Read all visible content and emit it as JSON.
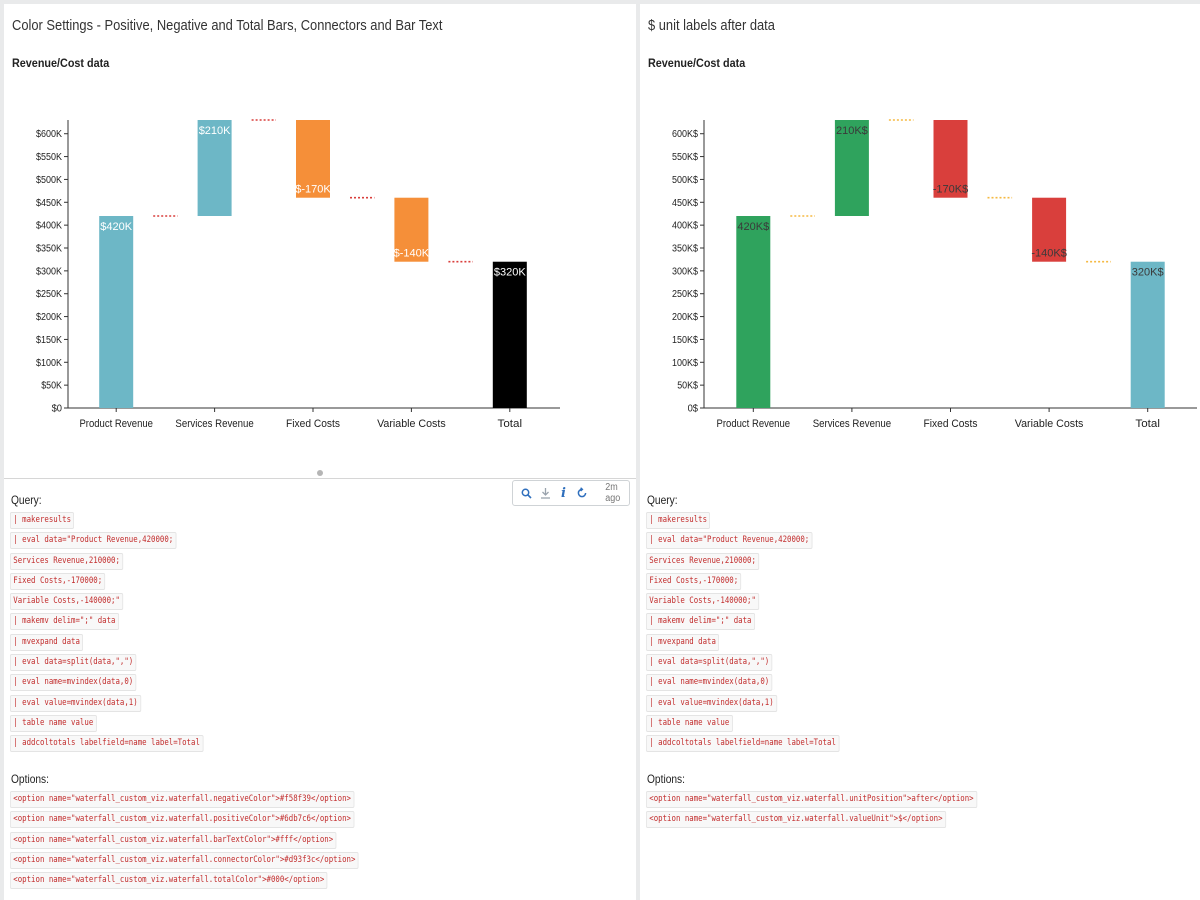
{
  "panels": [
    {
      "title": "Color Settings - Positive, Negative and Total Bars, Connectors and Bar Text",
      "chart_title": "Revenue/Cost data",
      "query_label": "Query:",
      "options_label": "Options:",
      "query_lines": [
        "| makeresults",
        "| eval data=\"Product Revenue,420000;",
        "Services Revenue,210000;",
        "Fixed Costs,-170000;",
        "Variable Costs,-140000;\"",
        "| makemv delim=\";\" data",
        "| mvexpand data",
        "| eval data=split(data,\",\")",
        "| eval name=mvindex(data,0)",
        "| eval value=mvindex(data,1)",
        "| table name value",
        "| addcoltotals labelfield=name label=Total"
      ],
      "option_lines": [
        "<option name=\"waterfall_custom_viz.waterfall.negativeColor\">#f58f39</option>",
        "<option name=\"waterfall_custom_viz.waterfall.positiveColor\">#6db7c6</option>",
        "<option name=\"waterfall_custom_viz.waterfall.barTextColor\">#fff</option>",
        "<option name=\"waterfall_custom_viz.waterfall.connectorColor\">#d93f3c</option>",
        "<option name=\"waterfall_custom_viz.waterfall.totalColor\">#000</option>"
      ],
      "toolbar": {
        "time": "2m ago",
        "info_label": "i"
      }
    },
    {
      "title": "$ unit labels after data",
      "chart_title": "Revenue/Cost data",
      "query_label": "Query:",
      "options_label": "Options:",
      "query_lines": [
        "| makeresults",
        "| eval data=\"Product Revenue,420000;",
        "Services Revenue,210000;",
        "Fixed Costs,-170000;",
        "Variable Costs,-140000;\"",
        "| makemv delim=\";\" data",
        "| mvexpand data",
        "| eval data=split(data,\",\")",
        "| eval name=mvindex(data,0)",
        "| eval value=mvindex(data,1)",
        "| table name value",
        "| addcoltotals labelfield=name label=Total"
      ],
      "option_lines": [
        "<option name=\"waterfall_custom_viz.waterfall.unitPosition\">after</option>",
        "<option name=\"waterfall_custom_viz.waterfall.valueUnit\">$</option>"
      ]
    }
  ],
  "chart_data": [
    {
      "type": "bar",
      "title": "Revenue/Cost data",
      "categories": [
        "Product Revenue",
        "Services Revenue",
        "Fixed Costs",
        "Variable Costs",
        "Total"
      ],
      "values": [
        420000,
        210000,
        -170000,
        -140000,
        320000
      ],
      "bar_labels": [
        "$420K",
        "$210K",
        "$-170K",
        "$-140K",
        "$320K"
      ],
      "y_ticks": [
        "$0",
        "$50K",
        "$100K",
        "$150K",
        "$200K",
        "$250K",
        "$300K",
        "$350K",
        "$400K",
        "$450K",
        "$500K",
        "$550K",
        "$600K"
      ],
      "ylim": [
        0,
        630000
      ],
      "colors": {
        "positive": "#6db7c6",
        "negative": "#f58f39",
        "total": "#000000",
        "connector": "#d93f3c",
        "bar_text": "#ffffff"
      }
    },
    {
      "type": "bar",
      "title": "Revenue/Cost data",
      "categories": [
        "Product Revenue",
        "Services Revenue",
        "Fixed Costs",
        "Variable Costs",
        "Total"
      ],
      "values": [
        420000,
        210000,
        -170000,
        -140000,
        320000
      ],
      "bar_labels": [
        "420K$",
        "210K$",
        "-170K$",
        "-140K$",
        "320K$"
      ],
      "y_ticks": [
        "0$",
        "50K$",
        "100K$",
        "150K$",
        "200K$",
        "250K$",
        "300K$",
        "350K$",
        "400K$",
        "450K$",
        "500K$",
        "550K$",
        "600K$"
      ],
      "ylim": [
        0,
        630000
      ],
      "colors": {
        "positive": "#2fa35d",
        "negative": "#d93f3c",
        "total": "#6db7c6",
        "connector": "#f5b942",
        "bar_text": "#3a3a3a"
      }
    }
  ]
}
